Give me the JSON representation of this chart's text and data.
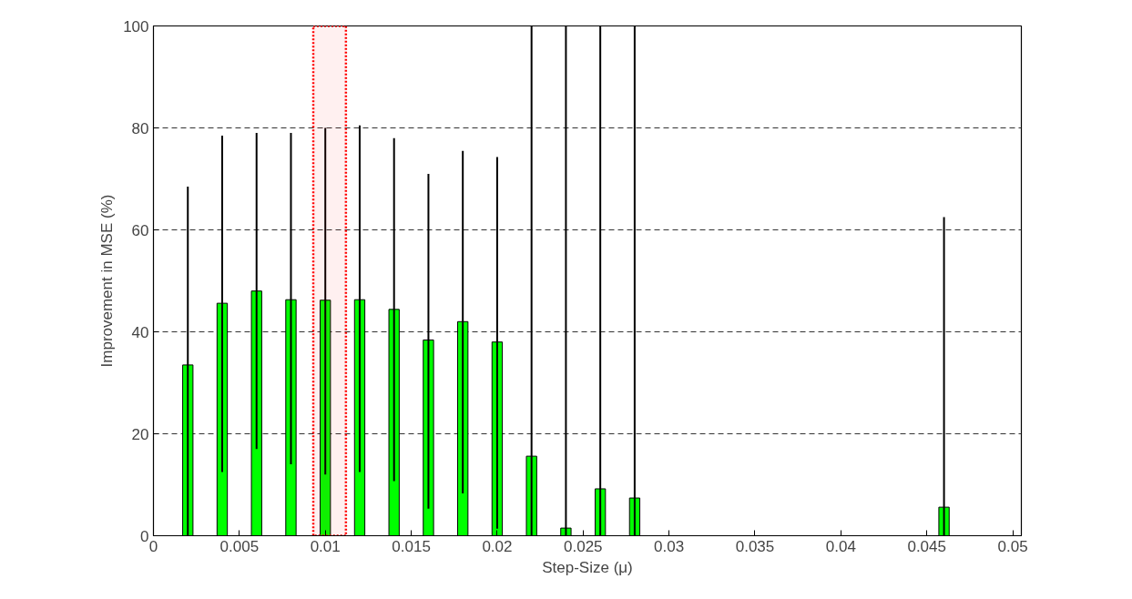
{
  "chart_data": {
    "type": "bar",
    "xlabel": "Step-Size (μ)",
    "ylabel": "Improvement in MSE (%)",
    "x": [
      0.002,
      0.004,
      0.006,
      0.008,
      0.01,
      0.012,
      0.014,
      0.016,
      0.018,
      0.02,
      0.022,
      0.024,
      0.026,
      0.028,
      0.03,
      0.032,
      0.034,
      0.036,
      0.038,
      0.04,
      0.042,
      0.044,
      0.046,
      0.048,
      0.05
    ],
    "values": [
      33.5,
      45.6,
      48,
      46.3,
      46.2,
      46.3,
      44.4,
      38.4,
      42,
      38,
      15.6,
      1.5,
      9.2,
      7.4,
      0,
      0,
      0,
      0,
      0,
      0,
      null,
      0,
      5.6,
      0,
      0
    ],
    "errors": [
      [
        0,
        68.5
      ],
      [
        12.5,
        78.5
      ],
      [
        17,
        79
      ],
      [
        14,
        79
      ],
      [
        12,
        80
      ],
      [
        12.5,
        80.5
      ],
      [
        10.7,
        78
      ],
      [
        5.3,
        71
      ],
      [
        8.3,
        75.5
      ],
      [
        1.4,
        74.3
      ],
      [
        0,
        100
      ],
      [
        0,
        100
      ],
      [
        0,
        100
      ],
      [
        0,
        100
      ],
      null,
      null,
      null,
      null,
      null,
      null,
      null,
      null,
      [
        0,
        62.5
      ],
      null,
      null
    ],
    "color": "#00ff00",
    "xlim": [
      0,
      0.0505
    ],
    "ylim": [
      0,
      100
    ],
    "xticks": [
      0,
      0.005,
      0.01,
      0.015,
      0.02,
      0.025,
      0.03,
      0.035,
      0.04,
      0.045,
      0.05
    ],
    "yticks": [
      0,
      20,
      40,
      60,
      80,
      100
    ],
    "grid": "y",
    "bands": [
      {
        "axis": "x",
        "from": 0.0093,
        "to": 0.0112,
        "color": "#ff0000"
      }
    ]
  }
}
